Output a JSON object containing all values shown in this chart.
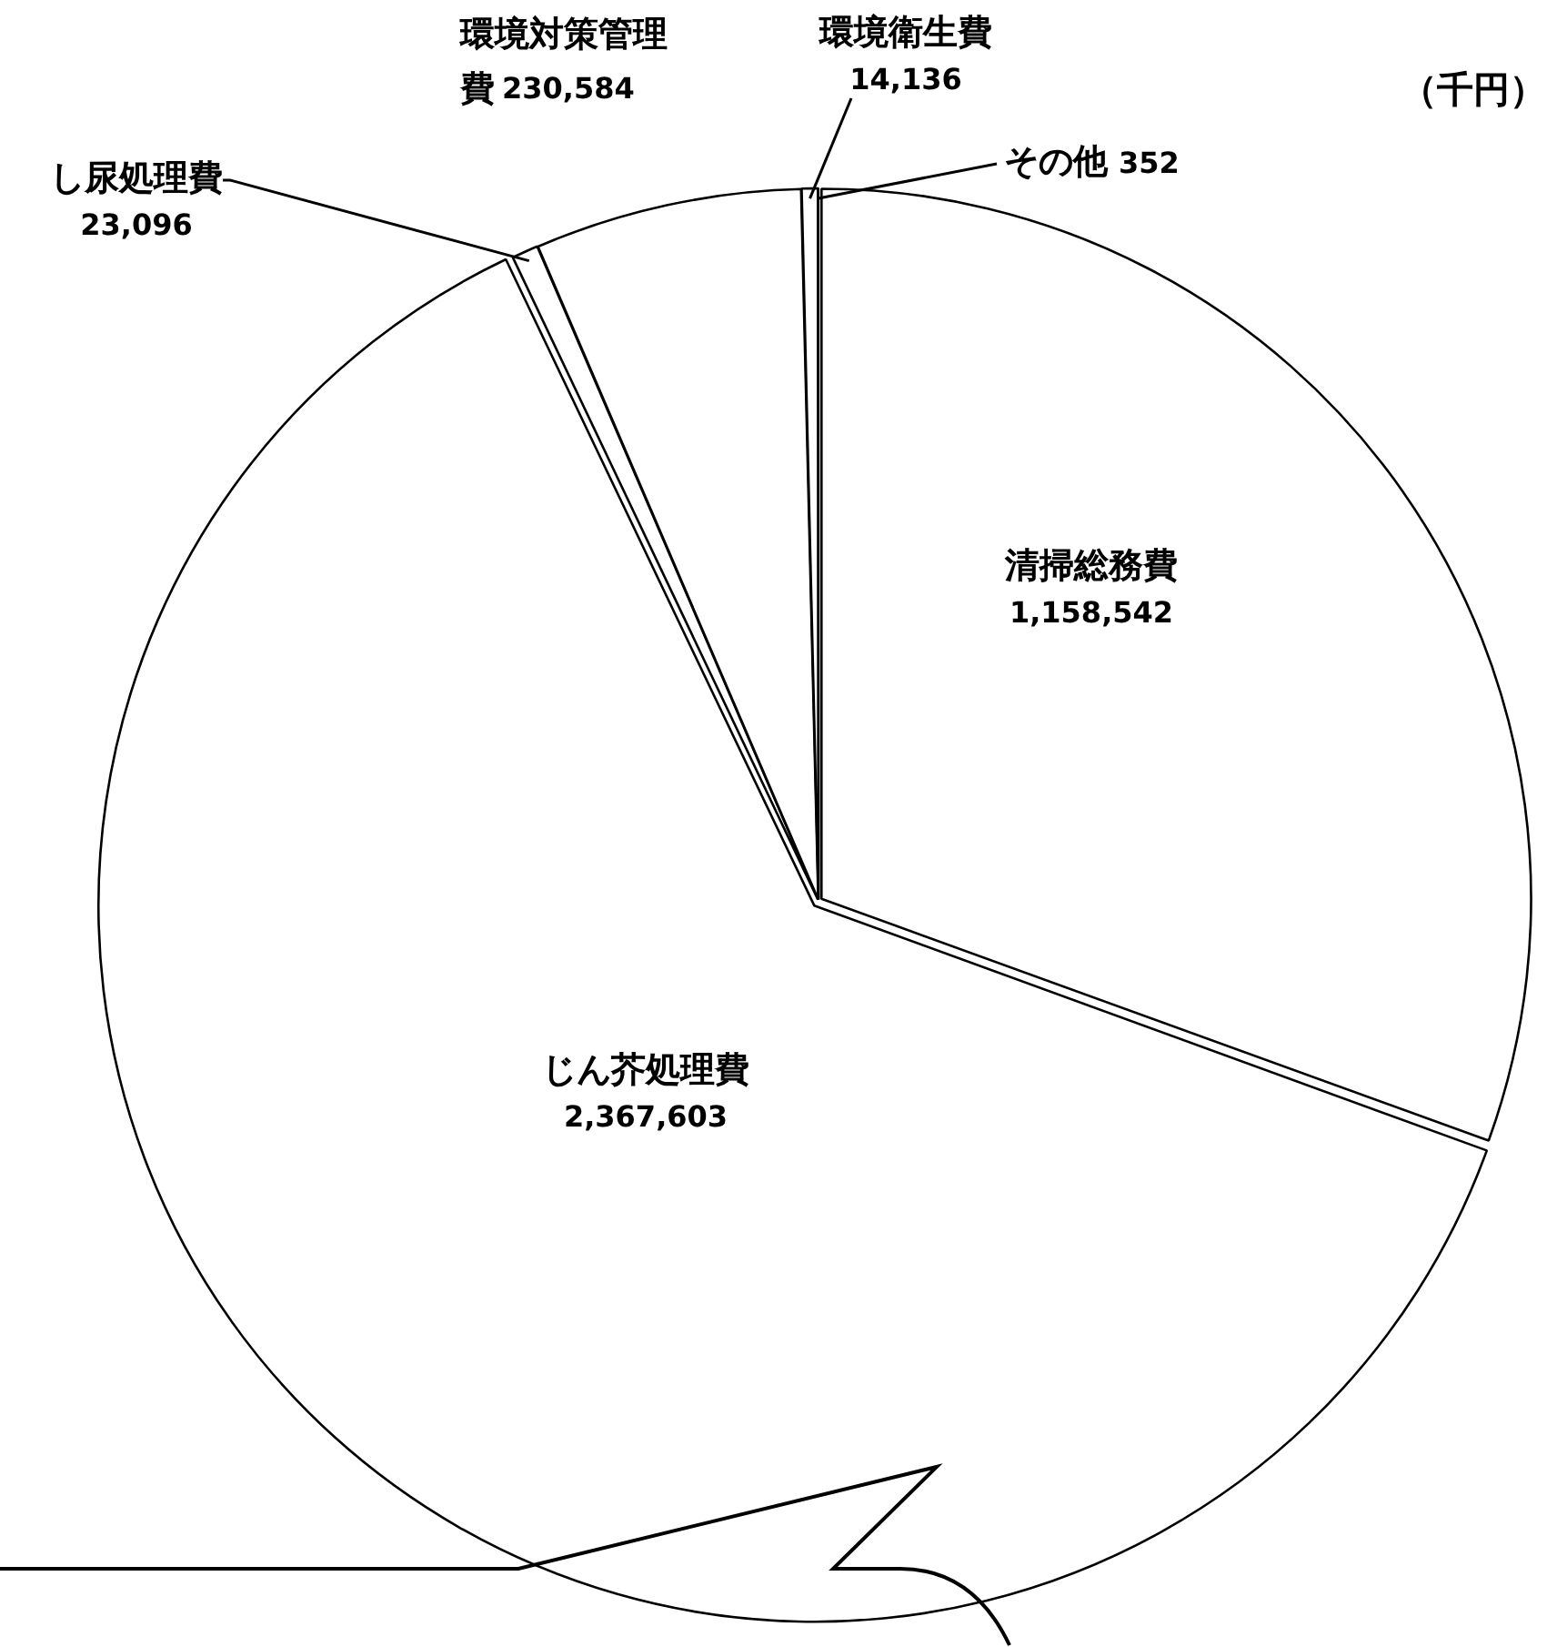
{
  "chart_data": {
    "type": "pie",
    "categories": [
      "清掃総務費",
      "じん芥処理費",
      "し尿処理費",
      "環境対策管理費",
      "環境衛生費",
      "その他"
    ],
    "values": [
      1158542,
      2367603,
      23096,
      230584,
      14136,
      352
    ],
    "colors": [
      "#ffffff",
      "#ffffff",
      "#ffffff",
      "#ffffff",
      "#ffffff",
      "#ffffff"
    ],
    "value_labels": [
      "1,158,542",
      "2,367,603",
      "23,096",
      "230,584",
      "14,136",
      "352"
    ],
    "legend": false,
    "annotations": [
      "（千円）"
    ]
  }
}
